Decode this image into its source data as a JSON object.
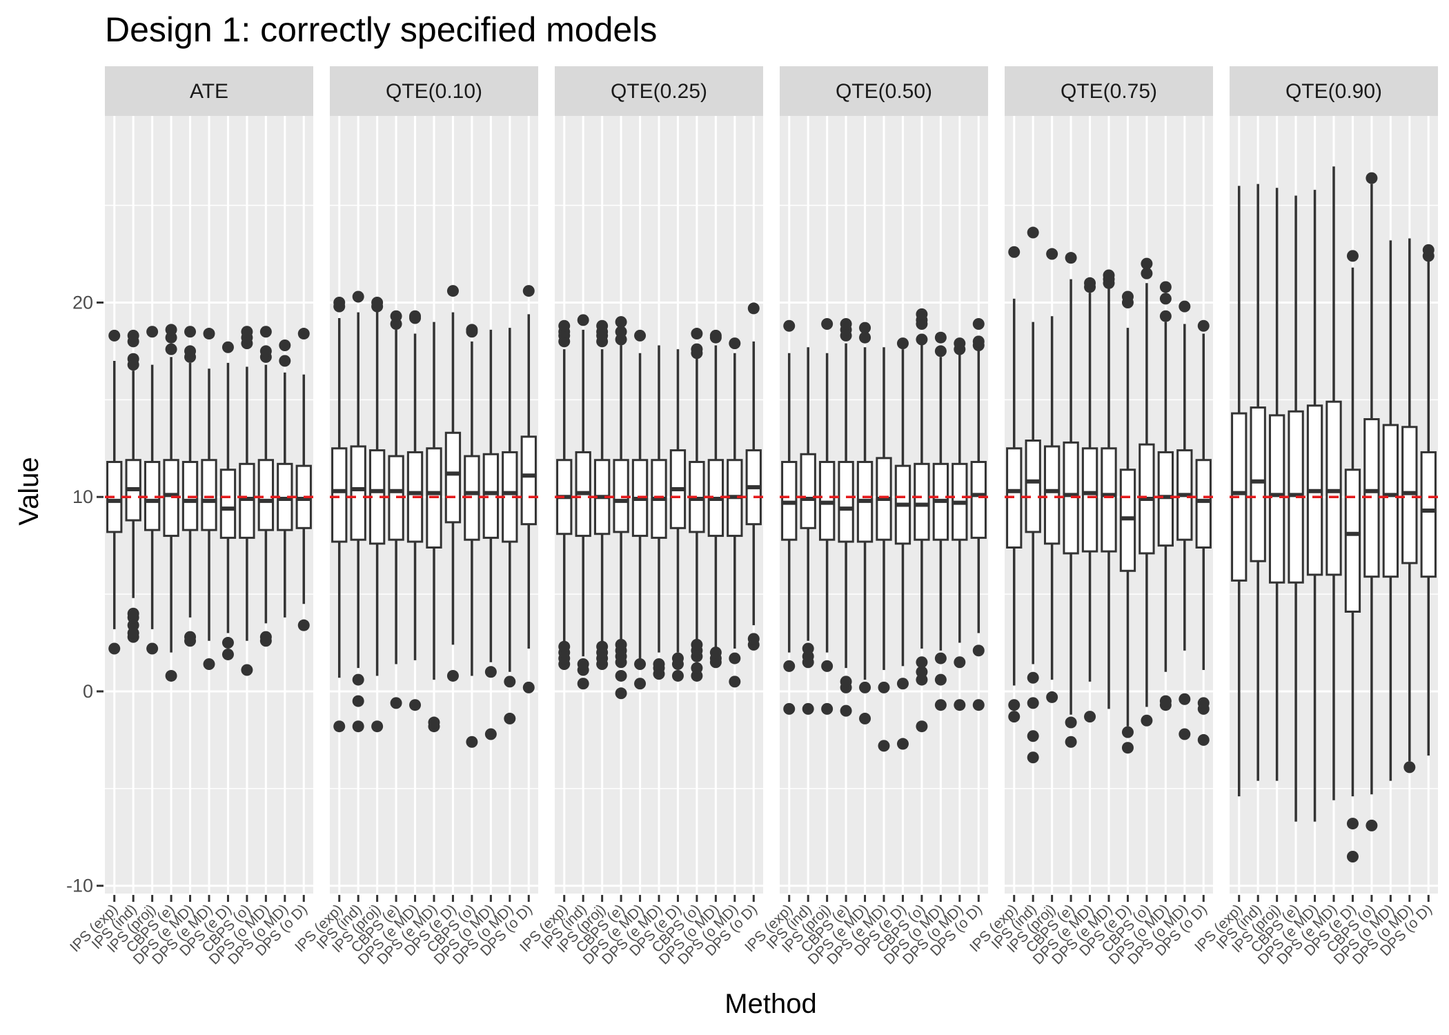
{
  "chart_data": {
    "type": "boxplot",
    "title": "Design 1: correctly specified models",
    "xlabel": "Method",
    "ylabel": "Value",
    "ylim": [
      -10.4,
      29.6
    ],
    "yticks": [
      -10,
      0,
      10,
      20
    ],
    "reference_line": {
      "y": 10,
      "color": "#e41a1c",
      "style": "dashed"
    },
    "grid": true,
    "categories": [
      "IPS (exp)",
      "IPS (ind)",
      "IPS (proj)",
      "CBPS (e)",
      "DPS (e MD)",
      "DPS (e MD)",
      "DPS (e D)",
      "CBPS (o)",
      "DPS (o MD)",
      "DPS (o MD)",
      "DPS (o D)"
    ],
    "panels": [
      {
        "name": "ATE",
        "boxes": [
          {
            "q1": 8.2,
            "median": 9.8,
            "q3": 11.8,
            "lower": 3.2,
            "upper": 17.0,
            "outliers": [
              2.2,
              18.3
            ]
          },
          {
            "q1": 8.8,
            "median": 10.4,
            "q3": 11.9,
            "lower": 4.8,
            "upper": 16.5,
            "outliers": [
              2.8,
              3.0,
              3.4,
              3.8,
              4.0,
              16.8,
              17.1,
              18.0,
              18.3
            ]
          },
          {
            "q1": 8.3,
            "median": 9.8,
            "q3": 11.8,
            "lower": 3.2,
            "upper": 16.8,
            "outliers": [
              2.2,
              18.5
            ]
          },
          {
            "q1": 8.0,
            "median": 10.1,
            "q3": 11.9,
            "lower": 2.0,
            "upper": 17.2,
            "outliers": [
              0.8,
              17.6,
              18.2,
              18.6
            ]
          },
          {
            "q1": 8.3,
            "median": 9.8,
            "q3": 11.8,
            "lower": 3.8,
            "upper": 16.9,
            "outliers": [
              2.6,
              2.8,
              17.2,
              17.5,
              18.5
            ]
          },
          {
            "q1": 8.3,
            "median": 9.8,
            "q3": 11.9,
            "lower": 2.6,
            "upper": 16.6,
            "outliers": [
              1.4,
              18.4
            ]
          },
          {
            "q1": 7.9,
            "median": 9.4,
            "q3": 11.4,
            "lower": 3.0,
            "upper": 16.9,
            "outliers": [
              1.9,
              2.5,
              17.7
            ]
          },
          {
            "q1": 7.9,
            "median": 9.9,
            "q3": 11.7,
            "lower": 2.6,
            "upper": 16.7,
            "outliers": [
              1.1,
              17.9,
              18.2,
              18.5
            ]
          },
          {
            "q1": 8.3,
            "median": 9.8,
            "q3": 11.9,
            "lower": 3.5,
            "upper": 16.8,
            "outliers": [
              2.6,
              2.8,
              17.2,
              17.5,
              18.5
            ]
          },
          {
            "q1": 8.3,
            "median": 9.9,
            "q3": 11.7,
            "lower": 3.8,
            "upper": 16.4,
            "outliers": [
              17.0,
              17.8
            ]
          },
          {
            "q1": 8.4,
            "median": 9.9,
            "q3": 11.6,
            "lower": 4.5,
            "upper": 16.3,
            "outliers": [
              3.4,
              18.4
            ]
          }
        ]
      },
      {
        "name": "QTE(0.10)",
        "boxes": [
          {
            "q1": 7.7,
            "median": 10.3,
            "q3": 12.5,
            "lower": 0.7,
            "upper": 19.2,
            "outliers": [
              -1.8,
              19.8,
              20.0
            ]
          },
          {
            "q1": 7.8,
            "median": 10.4,
            "q3": 12.6,
            "lower": 1.2,
            "upper": 19.5,
            "outliers": [
              -1.8,
              -0.5,
              0.6,
              20.3
            ]
          },
          {
            "q1": 7.6,
            "median": 10.3,
            "q3": 12.4,
            "lower": 0.8,
            "upper": 19.6,
            "outliers": [
              -1.8,
              19.8,
              20.0
            ]
          },
          {
            "q1": 7.8,
            "median": 10.3,
            "q3": 12.1,
            "lower": 1.4,
            "upper": 18.6,
            "outliers": [
              -0.6,
              18.9,
              19.3
            ]
          },
          {
            "q1": 7.7,
            "median": 10.2,
            "q3": 12.3,
            "lower": 1.6,
            "upper": 18.4,
            "outliers": [
              -0.7,
              19.2,
              19.3
            ]
          },
          {
            "q1": 7.4,
            "median": 10.2,
            "q3": 12.5,
            "lower": 0.6,
            "upper": 19.0,
            "outliers": [
              -1.8,
              -1.6
            ]
          },
          {
            "q1": 8.7,
            "median": 11.2,
            "q3": 13.3,
            "lower": 2.4,
            "upper": 19.5,
            "outliers": [
              0.8,
              20.6
            ]
          },
          {
            "q1": 7.8,
            "median": 10.2,
            "q3": 12.1,
            "lower": 0.8,
            "upper": 18.0,
            "outliers": [
              -2.6,
              18.5,
              18.6
            ]
          },
          {
            "q1": 7.9,
            "median": 10.2,
            "q3": 12.2,
            "lower": 1.5,
            "upper": 18.6,
            "outliers": [
              -2.2,
              1.0
            ]
          },
          {
            "q1": 7.7,
            "median": 10.2,
            "q3": 12.3,
            "lower": 1.0,
            "upper": 18.7,
            "outliers": [
              -1.4,
              0.5
            ]
          },
          {
            "q1": 8.6,
            "median": 11.1,
            "q3": 13.1,
            "lower": 2.2,
            "upper": 19.4,
            "outliers": [
              0.2,
              20.6
            ]
          }
        ]
      },
      {
        "name": "QTE(0.25)",
        "boxes": [
          {
            "q1": 8.1,
            "median": 10.0,
            "q3": 11.9,
            "lower": 2.5,
            "upper": 17.6,
            "outliers": [
              1.4,
              1.7,
              2.0,
              2.3,
              18.0,
              18.3,
              18.5,
              18.8
            ]
          },
          {
            "q1": 8.0,
            "median": 10.2,
            "q3": 12.3,
            "lower": 1.8,
            "upper": 18.6,
            "outliers": [
              0.4,
              1.1,
              1.4,
              19.1
            ]
          },
          {
            "q1": 8.1,
            "median": 10.0,
            "q3": 11.9,
            "lower": 2.4,
            "upper": 17.6,
            "outliers": [
              1.4,
              1.7,
              2.0,
              2.3,
              18.0,
              18.3,
              18.5,
              18.8
            ]
          },
          {
            "q1": 8.2,
            "median": 9.8,
            "q3": 11.9,
            "lower": 2.5,
            "upper": 17.8,
            "outliers": [
              -0.1,
              0.8,
              1.5,
              1.8,
              2.1,
              2.4,
              18.1,
              18.5,
              19.0
            ]
          },
          {
            "q1": 8.0,
            "median": 9.9,
            "q3": 11.9,
            "lower": 1.5,
            "upper": 17.4,
            "outliers": [
              0.4,
              1.4,
              18.3
            ]
          },
          {
            "q1": 7.9,
            "median": 9.9,
            "q3": 11.9,
            "lower": 2.0,
            "upper": 17.8,
            "outliers": [
              0.9,
              1.2,
              1.4
            ]
          },
          {
            "q1": 8.4,
            "median": 10.4,
            "q3": 12.4,
            "lower": 2.0,
            "upper": 17.6,
            "outliers": [
              0.8,
              1.4,
              1.7
            ]
          },
          {
            "q1": 8.2,
            "median": 9.9,
            "q3": 11.8,
            "lower": 2.5,
            "upper": 17.2,
            "outliers": [
              0.8,
              1.2,
              1.8,
              2.1,
              2.4,
              17.4,
              17.6,
              18.4
            ]
          },
          {
            "q1": 8.0,
            "median": 9.9,
            "q3": 11.9,
            "lower": 2.1,
            "upper": 17.8,
            "outliers": [
              1.5,
              1.7,
              2.0,
              18.2,
              18.3
            ]
          },
          {
            "q1": 8.0,
            "median": 10.0,
            "q3": 11.9,
            "lower": 2.2,
            "upper": 17.4,
            "outliers": [
              0.5,
              1.7,
              17.9
            ]
          },
          {
            "q1": 8.6,
            "median": 10.5,
            "q3": 12.4,
            "lower": 3.4,
            "upper": 18.0,
            "outliers": [
              2.4,
              2.7,
              19.7
            ]
          }
        ]
      },
      {
        "name": "QTE(0.50)",
        "boxes": [
          {
            "q1": 7.8,
            "median": 9.7,
            "q3": 11.8,
            "lower": 2.0,
            "upper": 17.4,
            "outliers": [
              -0.9,
              1.3,
              18.8
            ]
          },
          {
            "q1": 8.4,
            "median": 9.9,
            "q3": 12.2,
            "lower": 2.6,
            "upper": 17.7,
            "outliers": [
              -0.9,
              1.5,
              1.8,
              2.2
            ]
          },
          {
            "q1": 7.8,
            "median": 9.7,
            "q3": 11.8,
            "lower": 2.0,
            "upper": 17.4,
            "outliers": [
              -0.9,
              1.3,
              18.9
            ]
          },
          {
            "q1": 7.7,
            "median": 9.4,
            "q3": 11.8,
            "lower": 1.2,
            "upper": 17.9,
            "outliers": [
              -1.0,
              0.2,
              0.5,
              18.3,
              18.6,
              18.9
            ]
          },
          {
            "q1": 7.7,
            "median": 9.8,
            "q3": 11.8,
            "lower": 0.6,
            "upper": 17.7,
            "outliers": [
              -1.4,
              0.2,
              18.2,
              18.7
            ]
          },
          {
            "q1": 7.8,
            "median": 9.9,
            "q3": 12.0,
            "lower": 1.1,
            "upper": 17.7,
            "outliers": [
              -2.8,
              0.2
            ]
          },
          {
            "q1": 7.6,
            "median": 9.6,
            "q3": 11.6,
            "lower": 1.3,
            "upper": 17.6,
            "outliers": [
              -2.7,
              0.4,
              17.9
            ]
          },
          {
            "q1": 7.8,
            "median": 9.6,
            "q3": 11.7,
            "lower": 2.2,
            "upper": 17.9,
            "outliers": [
              -1.8,
              0.6,
              1.0,
              1.5,
              18.1,
              18.9,
              19.1,
              19.4
            ]
          },
          {
            "q1": 7.8,
            "median": 9.8,
            "q3": 11.7,
            "lower": 2.1,
            "upper": 17.2,
            "outliers": [
              -0.7,
              0.6,
              1.7,
              17.5,
              18.2
            ]
          },
          {
            "q1": 7.8,
            "median": 9.7,
            "q3": 11.7,
            "lower": 2.5,
            "upper": 17.4,
            "outliers": [
              -0.7,
              1.5,
              17.6,
              17.9
            ]
          },
          {
            "q1": 7.9,
            "median": 10.1,
            "q3": 11.8,
            "lower": 3.0,
            "upper": 17.6,
            "outliers": [
              -0.7,
              2.1,
              17.8,
              18.0,
              18.9
            ]
          }
        ]
      },
      {
        "name": "QTE(0.75)",
        "boxes": [
          {
            "q1": 7.4,
            "median": 10.3,
            "q3": 12.5,
            "lower": 0.3,
            "upper": 20.2,
            "outliers": [
              -1.3,
              -0.7,
              22.6
            ]
          },
          {
            "q1": 8.2,
            "median": 10.8,
            "q3": 12.9,
            "lower": 1.4,
            "upper": 19.0,
            "outliers": [
              -3.4,
              -2.3,
              -0.6,
              0.7,
              23.6
            ]
          },
          {
            "q1": 7.6,
            "median": 10.3,
            "q3": 12.6,
            "lower": 0.6,
            "upper": 19.3,
            "outliers": [
              -0.3,
              22.5
            ]
          },
          {
            "q1": 7.1,
            "median": 10.1,
            "q3": 12.8,
            "lower": -1.2,
            "upper": 21.2,
            "outliers": [
              -2.6,
              -1.6,
              22.3
            ]
          },
          {
            "q1": 7.2,
            "median": 10.2,
            "q3": 12.5,
            "lower": 0.5,
            "upper": 20.5,
            "outliers": [
              -1.3,
              20.8,
              21.0
            ]
          },
          {
            "q1": 7.2,
            "median": 10.1,
            "q3": 12.5,
            "lower": -0.9,
            "upper": 20.9,
            "outliers": [
              21.0,
              21.2,
              21.4
            ]
          },
          {
            "q1": 6.2,
            "median": 8.9,
            "q3": 11.4,
            "lower": -1.8,
            "upper": 18.7,
            "outliers": [
              -2.9,
              -2.1,
              20.0,
              20.3
            ]
          },
          {
            "q1": 7.1,
            "median": 9.9,
            "q3": 12.7,
            "lower": -0.8,
            "upper": 21.0,
            "outliers": [
              -1.5,
              21.5,
              22.0
            ]
          },
          {
            "q1": 7.5,
            "median": 10.0,
            "q3": 12.3,
            "lower": 1.0,
            "upper": 19.0,
            "outliers": [
              -0.7,
              -0.5,
              19.3,
              20.2,
              20.8
            ]
          },
          {
            "q1": 7.8,
            "median": 10.1,
            "q3": 12.4,
            "lower": 2.1,
            "upper": 18.9,
            "outliers": [
              -2.2,
              -0.4,
              19.8
            ]
          },
          {
            "q1": 7.4,
            "median": 9.8,
            "q3": 11.9,
            "lower": 1.1,
            "upper": 18.4,
            "outliers": [
              -2.5,
              -0.9,
              -0.6,
              18.8
            ]
          }
        ]
      },
      {
        "name": "QTE(0.90)",
        "boxes": [
          {
            "q1": 5.7,
            "median": 10.2,
            "q3": 14.3,
            "lower": -5.4,
            "upper": 26.0,
            "outliers": []
          },
          {
            "q1": 6.7,
            "median": 10.8,
            "q3": 14.6,
            "lower": -4.6,
            "upper": 26.1,
            "outliers": []
          },
          {
            "q1": 5.6,
            "median": 10.1,
            "q3": 14.2,
            "lower": -4.6,
            "upper": 25.9,
            "outliers": []
          },
          {
            "q1": 5.6,
            "median": 10.1,
            "q3": 14.4,
            "lower": -6.7,
            "upper": 25.5,
            "outliers": []
          },
          {
            "q1": 6.0,
            "median": 10.3,
            "q3": 14.7,
            "lower": -6.7,
            "upper": 25.8,
            "outliers": []
          },
          {
            "q1": 6.0,
            "median": 10.3,
            "q3": 14.9,
            "lower": -5.6,
            "upper": 27.0,
            "outliers": []
          },
          {
            "q1": 4.1,
            "median": 8.1,
            "q3": 11.4,
            "lower": -5.4,
            "upper": 21.8,
            "outliers": [
              -8.5,
              -6.8,
              22.4
            ]
          },
          {
            "q1": 5.9,
            "median": 10.3,
            "q3": 14.0,
            "lower": -5.3,
            "upper": 26.1,
            "outliers": [
              -6.9,
              26.4
            ]
          },
          {
            "q1": 5.9,
            "median": 10.1,
            "q3": 13.7,
            "lower": -4.6,
            "upper": 23.2,
            "outliers": []
          },
          {
            "q1": 6.6,
            "median": 10.2,
            "q3": 13.6,
            "lower": -3.6,
            "upper": 23.3,
            "outliers": [
              -3.9
            ]
          },
          {
            "q1": 5.9,
            "median": 9.3,
            "q3": 12.3,
            "lower": -3.3,
            "upper": 22.2,
            "outliers": [
              22.4,
              22.7
            ]
          }
        ]
      }
    ]
  }
}
